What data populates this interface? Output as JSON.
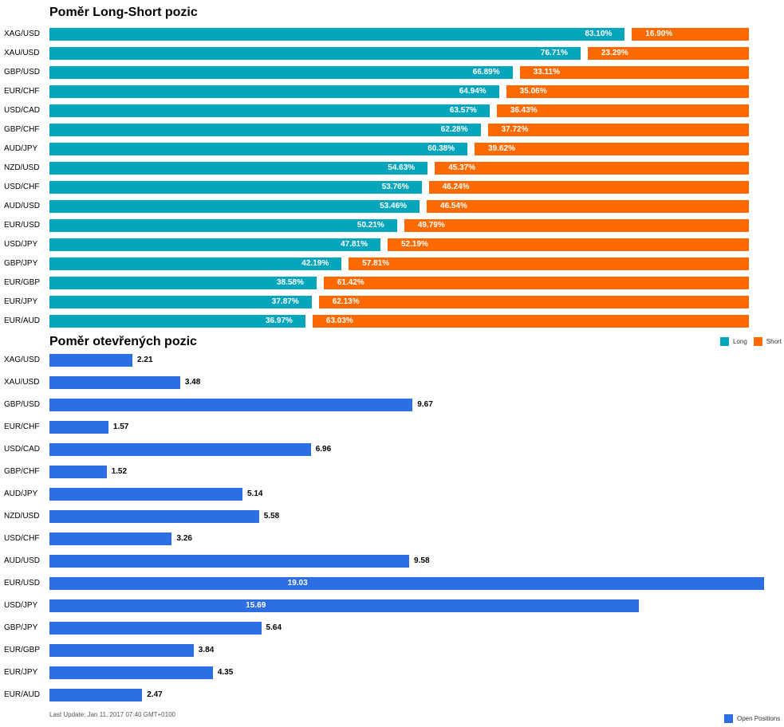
{
  "title1": "Poměr Long-Short pozic",
  "title2": "Poměr otevřených pozic",
  "last_update": "Last Update: Jan 11, 2017 07:40 GMT+0100",
  "colors": {
    "long": "#05a5bb",
    "short": "#ff6a00",
    "open": "#2e6ee3"
  },
  "legend1": {
    "long": "Long",
    "short": "Short"
  },
  "legend2": {
    "open": "Open Positions"
  },
  "chart_data": [
    {
      "type": "bar",
      "title": "Poměr Long-Short pozic",
      "orientation": "horizontal",
      "stacked": true,
      "categories": [
        "XAG/USD",
        "XAU/USD",
        "GBP/USD",
        "EUR/CHF",
        "USD/CAD",
        "GBP/CHF",
        "AUD/JPY",
        "NZD/USD",
        "USD/CHF",
        "AUD/USD",
        "EUR/USD",
        "USD/JPY",
        "GBP/JPY",
        "EUR/GBP",
        "EUR/JPY",
        "EUR/AUD"
      ],
      "series": [
        {
          "name": "Long",
          "values": [
            83.1,
            76.71,
            66.89,
            64.94,
            63.57,
            62.28,
            60.38,
            54.63,
            53.76,
            53.46,
            50.21,
            47.81,
            42.19,
            38.58,
            37.87,
            36.97
          ],
          "labels": [
            "83.10%",
            "76.71%",
            "66.89%",
            "64.94%",
            "63.57%",
            "62.28%",
            "60.38%",
            "54.63%",
            "53.76%",
            "53.46%",
            "50.21%",
            "47.81%",
            "42.19%",
            "38.58%",
            "37.87%",
            "36.97%"
          ]
        },
        {
          "name": "Short",
          "values": [
            16.9,
            23.29,
            33.11,
            35.06,
            36.43,
            37.72,
            39.62,
            45.37,
            46.24,
            46.54,
            49.79,
            52.19,
            57.81,
            61.42,
            62.13,
            63.03
          ],
          "labels": [
            "16.90%",
            "23.29%",
            "33.11%",
            "35.06%",
            "36.43%",
            "37.72%",
            "39.62%",
            "45.37%",
            "46.24%",
            "46.54%",
            "49.79%",
            "52.19%",
            "57.81%",
            "61.42%",
            "62.13%",
            "63.03%"
          ]
        }
      ],
      "xlim": [
        0,
        100
      ],
      "legend": "top-right"
    },
    {
      "type": "bar",
      "title": "Poměr otevřených pozic",
      "orientation": "horizontal",
      "categories": [
        "XAG/USD",
        "XAU/USD",
        "GBP/USD",
        "EUR/CHF",
        "USD/CAD",
        "GBP/CHF",
        "AUD/JPY",
        "NZD/USD",
        "USD/CHF",
        "AUD/USD",
        "EUR/USD",
        "USD/JPY",
        "GBP/JPY",
        "EUR/GBP",
        "EUR/JPY",
        "EUR/AUD"
      ],
      "series": [
        {
          "name": "Open Positions",
          "values": [
            2.21,
            3.48,
            9.67,
            1.57,
            6.96,
            1.52,
            5.14,
            5.58,
            3.26,
            9.58,
            19.03,
            15.69,
            5.64,
            3.84,
            4.35,
            2.47
          ],
          "labels": [
            "2.21",
            "3.48",
            "9.67",
            "1.57",
            "6.96",
            "1.52",
            "5.14",
            "5.58",
            "3.26",
            "9.58",
            "19.03",
            "15.69",
            "5.64",
            "3.84",
            "4.35",
            "2.47"
          ]
        }
      ],
      "xlim": [
        0,
        19.03
      ],
      "legend": "bottom-right"
    }
  ]
}
